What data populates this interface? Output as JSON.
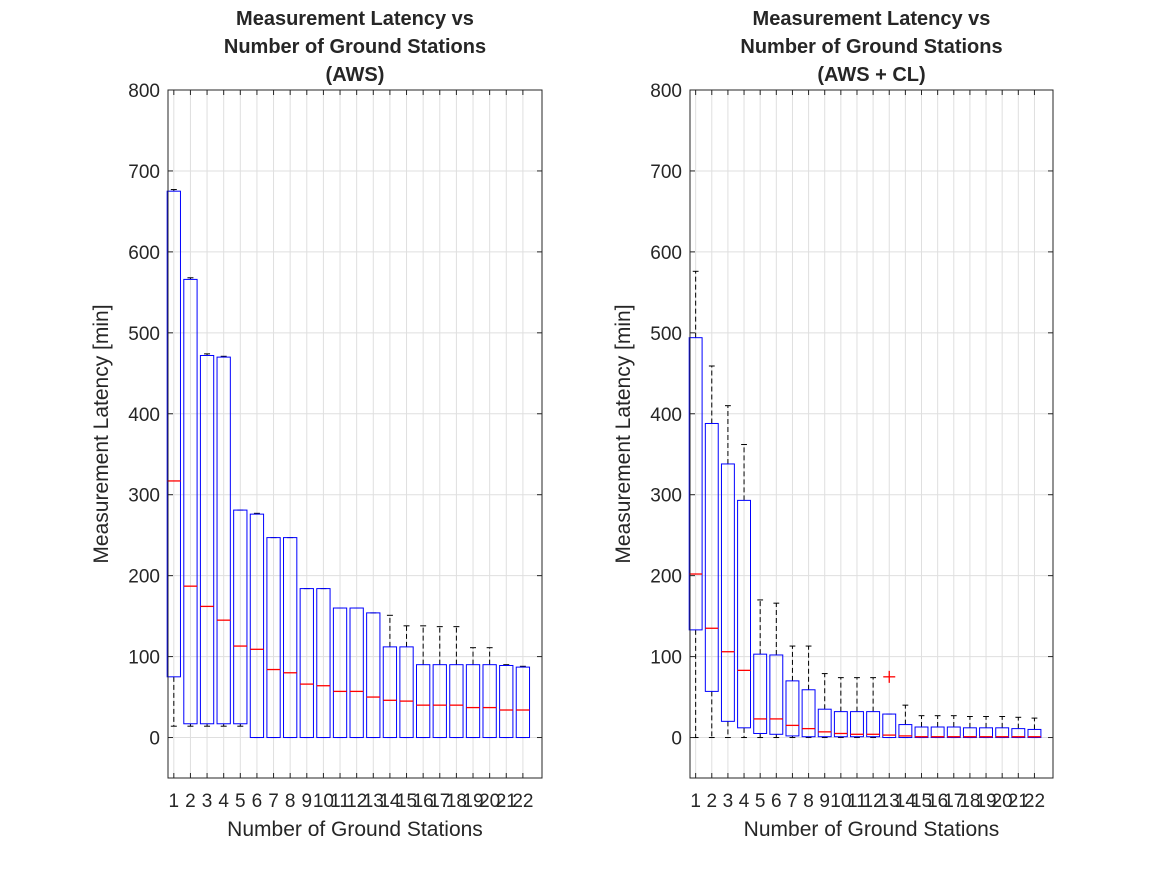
{
  "chart_data": [
    {
      "type": "box",
      "title": [
        "Measurement Latency vs",
        "Number of Ground Stations",
        "(AWS)"
      ],
      "xlabel": "Number of Ground Stations",
      "ylabel": "Measurement Latency [min]",
      "ylim": [
        -50,
        800
      ],
      "yticks": [
        0,
        100,
        200,
        300,
        400,
        500,
        600,
        700,
        800
      ],
      "grid": true,
      "categories": [
        "1",
        "2",
        "3",
        "4",
        "5",
        "6",
        "7",
        "8",
        "9",
        "10",
        "11",
        "12",
        "13",
        "14",
        "15",
        "16",
        "17",
        "18",
        "19",
        "20",
        "21",
        "22"
      ],
      "boxes": [
        {
          "lw": 14,
          "q1": 75,
          "median": 317,
          "q3": 675,
          "uw": 677
        },
        {
          "lw": 14,
          "q1": 17,
          "median": 187,
          "q3": 566,
          "uw": 568
        },
        {
          "lw": 14,
          "q1": 17,
          "median": 162,
          "q3": 472,
          "uw": 474
        },
        {
          "lw": 14,
          "q1": 17,
          "median": 145,
          "q3": 470,
          "uw": 471
        },
        {
          "lw": 14,
          "q1": 17,
          "median": 113,
          "q3": 281,
          "uw": 281
        },
        {
          "lw": 0,
          "q1": 0,
          "median": 109,
          "q3": 276,
          "uw": 277
        },
        {
          "lw": 0,
          "q1": 0,
          "median": 84,
          "q3": 247,
          "uw": 247
        },
        {
          "lw": 0,
          "q1": 0,
          "median": 80,
          "q3": 247,
          "uw": 247
        },
        {
          "lw": 0,
          "q1": 0,
          "median": 66,
          "q3": 184,
          "uw": 184
        },
        {
          "lw": 0,
          "q1": 0,
          "median": 64,
          "q3": 184,
          "uw": 184
        },
        {
          "lw": 0,
          "q1": 0,
          "median": 57,
          "q3": 160,
          "uw": 160
        },
        {
          "lw": 0,
          "q1": 0,
          "median": 57,
          "q3": 160,
          "uw": 160
        },
        {
          "lw": 0,
          "q1": 0,
          "median": 50,
          "q3": 154,
          "uw": 154
        },
        {
          "lw": 0,
          "q1": 0,
          "median": 46,
          "q3": 112,
          "uw": 151
        },
        {
          "lw": 0,
          "q1": 0,
          "median": 45,
          "q3": 112,
          "uw": 138
        },
        {
          "lw": 0,
          "q1": 0,
          "median": 40,
          "q3": 90,
          "uw": 138
        },
        {
          "lw": 0,
          "q1": 0,
          "median": 40,
          "q3": 90,
          "uw": 137
        },
        {
          "lw": 0,
          "q1": 0,
          "median": 40,
          "q3": 90,
          "uw": 137
        },
        {
          "lw": 0,
          "q1": 0,
          "median": 37,
          "q3": 90,
          "uw": 111
        },
        {
          "lw": 0,
          "q1": 0,
          "median": 37,
          "q3": 90,
          "uw": 111
        },
        {
          "lw": 0,
          "q1": 0,
          "median": 34,
          "q3": 89,
          "uw": 90
        },
        {
          "lw": 0,
          "q1": 0,
          "median": 34,
          "q3": 87,
          "uw": 88
        }
      ],
      "outliers": []
    },
    {
      "type": "box",
      "title": [
        "Measurement Latency vs",
        "Number of Ground Stations",
        "(AWS + CL)"
      ],
      "xlabel": "Number of Ground Stations",
      "ylabel": "Measurement Latency [min]",
      "ylim": [
        -50,
        800
      ],
      "yticks": [
        0,
        100,
        200,
        300,
        400,
        500,
        600,
        700,
        800
      ],
      "grid": true,
      "categories": [
        "1",
        "2",
        "3",
        "4",
        "5",
        "6",
        "7",
        "8",
        "9",
        "10",
        "11",
        "12",
        "13",
        "14",
        "15",
        "16",
        "17",
        "18",
        "19",
        "20",
        "21",
        "22"
      ],
      "boxes": [
        {
          "lw": 0,
          "q1": 133,
          "median": 202,
          "q3": 494,
          "uw": 576
        },
        {
          "lw": 0,
          "q1": 57,
          "median": 135,
          "q3": 388,
          "uw": 459
        },
        {
          "lw": 0,
          "q1": 20,
          "median": 106,
          "q3": 338,
          "uw": 410
        },
        {
          "lw": 0,
          "q1": 12,
          "median": 83,
          "q3": 293,
          "uw": 362
        },
        {
          "lw": 0,
          "q1": 5,
          "median": 23,
          "q3": 103,
          "uw": 170
        },
        {
          "lw": 0,
          "q1": 4,
          "median": 23,
          "q3": 102,
          "uw": 166
        },
        {
          "lw": 0,
          "q1": 2,
          "median": 15,
          "q3": 70,
          "uw": 113
        },
        {
          "lw": 0,
          "q1": 1,
          "median": 11,
          "q3": 59,
          "uw": 113
        },
        {
          "lw": 0,
          "q1": 1,
          "median": 7,
          "q3": 35,
          "uw": 79
        },
        {
          "lw": 0,
          "q1": 1,
          "median": 5,
          "q3": 32,
          "uw": 74
        },
        {
          "lw": 0,
          "q1": 1,
          "median": 4,
          "q3": 32,
          "uw": 74
        },
        {
          "lw": 0,
          "q1": 1,
          "median": 4,
          "q3": 32,
          "uw": 74
        },
        {
          "lw": 0,
          "q1": 0,
          "median": 3,
          "q3": 29,
          "uw": 29
        },
        {
          "lw": 0,
          "q1": 0,
          "median": 2,
          "q3": 16,
          "uw": 40
        },
        {
          "lw": 0,
          "q1": 0,
          "median": 1,
          "q3": 13,
          "uw": 27
        },
        {
          "lw": 0,
          "q1": 0,
          "median": 1,
          "q3": 13,
          "uw": 27
        },
        {
          "lw": 0,
          "q1": 0,
          "median": 1,
          "q3": 13,
          "uw": 27
        },
        {
          "lw": 0,
          "q1": 0,
          "median": 1,
          "q3": 12,
          "uw": 26
        },
        {
          "lw": 0,
          "q1": 0,
          "median": 1,
          "q3": 12,
          "uw": 26
        },
        {
          "lw": 0,
          "q1": 0,
          "median": 1,
          "q3": 12,
          "uw": 26
        },
        {
          "lw": 0,
          "q1": 0,
          "median": 1,
          "q3": 11,
          "uw": 25
        },
        {
          "lw": 0,
          "q1": 0,
          "median": 1,
          "q3": 10,
          "uw": 24
        }
      ],
      "outliers": [
        {
          "category": "13",
          "value": 75
        }
      ]
    }
  ],
  "colors": {
    "box": "#0000ff",
    "median": "#ff0000",
    "whisker": "#000000",
    "outlier": "#ff0000",
    "grid": "#dfdfdf",
    "axis": "#262626"
  }
}
